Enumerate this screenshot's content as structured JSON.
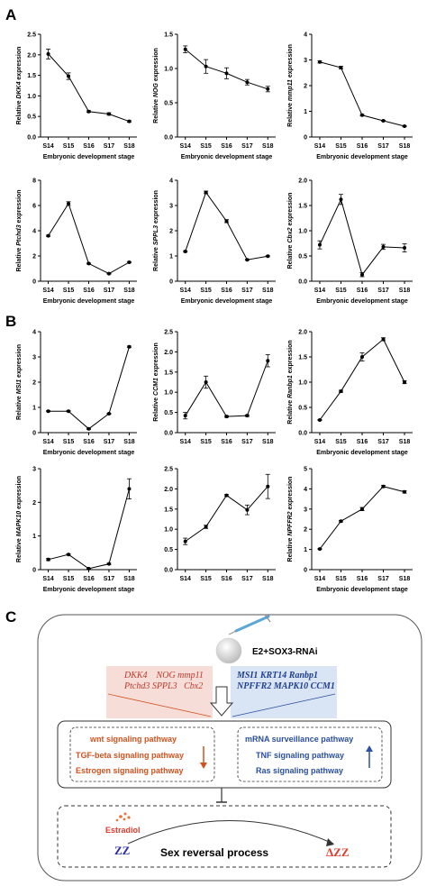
{
  "panel_letters": {
    "a": "A",
    "b": "B",
    "c": "C"
  },
  "chart_data": [
    {
      "type": "line",
      "panel": "A",
      "ylabel_prefix": "Relative ",
      "ylabel_gene": "DKK4",
      "ylabel_suffix": " expression",
      "xlabel": "Embryonic development stage",
      "categories": [
        "S14",
        "S15",
        "S16",
        "S17",
        "S18"
      ],
      "values": [
        2.02,
        1.48,
        0.62,
        0.56,
        0.38
      ],
      "errors": [
        0.12,
        0.08,
        0.02,
        0.03,
        0.02
      ],
      "ylim": [
        0,
        2.5
      ],
      "yticks": [
        "0.0",
        "0.5",
        "1.0",
        "1.5",
        "2.0",
        "2.5"
      ]
    },
    {
      "type": "line",
      "panel": "A",
      "ylabel_prefix": "Relative ",
      "ylabel_gene": "NOG",
      "ylabel_suffix": " expression",
      "xlabel": "Embryonic development stage",
      "categories": [
        "S14",
        "S15",
        "S16",
        "S17",
        "S18"
      ],
      "values": [
        1.28,
        1.03,
        0.93,
        0.8,
        0.7
      ],
      "errors": [
        0.05,
        0.1,
        0.08,
        0.04,
        0.04
      ],
      "ylim": [
        0,
        1.5
      ],
      "yticks": [
        "0.0",
        "0.5",
        "1.0",
        "1.5"
      ]
    },
    {
      "type": "line",
      "panel": "A",
      "ylabel_prefix": "Relative ",
      "ylabel_gene": "mmp11",
      "ylabel_suffix": " expression",
      "xlabel": "Embryonic development stage",
      "categories": [
        "S14",
        "S15",
        "S16",
        "S17",
        "S18"
      ],
      "values": [
        2.92,
        2.7,
        0.85,
        0.63,
        0.42
      ],
      "errors": [
        0.04,
        0.05,
        0.03,
        0.02,
        0.02
      ],
      "ylim": [
        0,
        4
      ],
      "yticks": [
        "0",
        "1",
        "2",
        "3",
        "4"
      ]
    },
    {
      "type": "line",
      "panel": "A",
      "ylabel_prefix": "Relative ",
      "ylabel_gene": "Ptchd3",
      "ylabel_suffix": " expression",
      "xlabel": "Embryonic development stage",
      "categories": [
        "S14",
        "S15",
        "S16",
        "S17",
        "S18"
      ],
      "values": [
        3.6,
        6.15,
        1.4,
        0.6,
        1.5
      ],
      "errors": [
        0.05,
        0.15,
        0.04,
        0.03,
        0.05
      ],
      "ylim": [
        0,
        8
      ],
      "yticks": [
        "0",
        "2",
        "4",
        "6",
        "8"
      ]
    },
    {
      "type": "line",
      "panel": "A",
      "ylabel_prefix": "Relative ",
      "ylabel_gene": "SPPL3",
      "ylabel_suffix": " expression",
      "xlabel": "Embryonic development stage",
      "categories": [
        "S14",
        "S15",
        "S16",
        "S17",
        "S18"
      ],
      "values": [
        1.18,
        3.52,
        2.38,
        0.85,
        0.99
      ],
      "errors": [
        0.03,
        0.05,
        0.06,
        0.02,
        0.02
      ],
      "ylim": [
        0,
        4
      ],
      "yticks": [
        "0",
        "1",
        "2",
        "3",
        "4"
      ]
    },
    {
      "type": "line",
      "panel": "A",
      "ylabel_prefix": "Relative ",
      "ylabel_gene": "Cbx2",
      "ylabel_suffix": " expression",
      "xlabel": "Embryonic development stage",
      "categories": [
        "S14",
        "S15",
        "S16",
        "S17",
        "S18"
      ],
      "values": [
        0.72,
        1.62,
        0.13,
        0.68,
        0.66
      ],
      "errors": [
        0.08,
        0.1,
        0.04,
        0.05,
        0.08
      ],
      "ylim": [
        0,
        2.0
      ],
      "yticks": [
        "0.0",
        "0.5",
        "1.0",
        "1.5",
        "2.0"
      ]
    },
    {
      "type": "line",
      "panel": "B",
      "ylabel_prefix": "Relative ",
      "ylabel_gene": "MSI1",
      "ylabel_suffix": " expression",
      "xlabel": "Embryonic development stage",
      "categories": [
        "S14",
        "S15",
        "S16",
        "S17",
        "S18"
      ],
      "values": [
        0.85,
        0.85,
        0.15,
        0.75,
        3.4
      ],
      "errors": [
        0.02,
        0.02,
        0.02,
        0.02,
        0.03
      ],
      "ylim": [
        0,
        4
      ],
      "yticks": [
        "0",
        "1",
        "2",
        "3",
        "4"
      ]
    },
    {
      "type": "line",
      "panel": "B",
      "ylabel_prefix": "Relative ",
      "ylabel_gene": "CCM1",
      "ylabel_suffix": " expression",
      "xlabel": "",
      "categories": [
        "S14",
        "S15",
        "S16",
        "S17",
        "S18"
      ],
      "values": [
        0.42,
        1.25,
        0.4,
        0.42,
        1.78
      ],
      "errors": [
        0.08,
        0.15,
        0.02,
        0.02,
        0.15
      ],
      "ylim": [
        0,
        2.5
      ],
      "yticks": [
        "0.0",
        "0.5",
        "1.0",
        "1.5",
        "2.0",
        "2.5"
      ]
    },
    {
      "type": "line",
      "panel": "B",
      "ylabel_prefix": "Relative ",
      "ylabel_gene": "Ranbp1",
      "ylabel_suffix": " expression",
      "xlabel": "Embryonic development stage",
      "categories": [
        "S14",
        "S15",
        "S16",
        "S17",
        "S18"
      ],
      "values": [
        0.25,
        0.82,
        1.5,
        1.85,
        1.0
      ],
      "errors": [
        0.01,
        0.02,
        0.08,
        0.03,
        0.03
      ],
      "ylim": [
        0,
        2.0
      ],
      "yticks": [
        "0.0",
        "0.5",
        "1.0",
        "1.5",
        "2.0"
      ]
    },
    {
      "type": "line",
      "panel": "B",
      "ylabel_prefix": "Relative ",
      "ylabel_gene": "MAPK10",
      "ylabel_suffix": " expression",
      "xlabel": "Embryonic development stage",
      "categories": [
        "S14",
        "S15",
        "S16",
        "S17",
        "S18"
      ],
      "values": [
        0.3,
        0.45,
        0.03,
        0.17,
        2.4
      ],
      "errors": [
        0.03,
        0.02,
        0.01,
        0.02,
        0.3
      ],
      "ylim": [
        0,
        3
      ],
      "yticks": [
        "0",
        "1",
        "2",
        "3"
      ]
    },
    {
      "type": "line",
      "panel": "B",
      "ylabel_prefix": "",
      "ylabel_gene": "",
      "ylabel_suffix": "",
      "xlabel": "",
      "categories": [
        "S14",
        "S15",
        "S16",
        "S17",
        "S18"
      ],
      "values": [
        0.7,
        1.06,
        1.84,
        1.48,
        2.06
      ],
      "errors": [
        0.08,
        0.04,
        0.02,
        0.12,
        0.3
      ],
      "ylim": [
        0,
        2.5
      ],
      "yticks": [
        "0.0",
        "0.5",
        "1.0",
        "1.5",
        "2.0",
        "2.5"
      ]
    },
    {
      "type": "line",
      "panel": "B",
      "ylabel_prefix": "Relative ",
      "ylabel_gene": "NPFFR2",
      "ylabel_suffix": " expression",
      "xlabel": "Embryonic development stage",
      "categories": [
        "S14",
        "S15",
        "S16",
        "S17",
        "S18"
      ],
      "values": [
        1.02,
        2.4,
        3.0,
        4.12,
        3.85
      ],
      "errors": [
        0.02,
        0.04,
        0.08,
        0.05,
        0.06
      ],
      "ylim": [
        0,
        5
      ],
      "yticks": [
        "0",
        "1",
        "2",
        "3",
        "4",
        "5"
      ]
    }
  ],
  "diagram": {
    "treatment": "E2+SOX3-RNAi",
    "down_genes_line1": "DKK4    NOG mmp11",
    "down_genes_line2": "Ptchd3 SPPL3   Cbx2",
    "up_genes_line1": "MSI1 KRT14 Ranbp1",
    "up_genes_line2": "NPFFR2 MAPK10 CCM1",
    "down_pathways": [
      "wnt signaling pathway",
      "TGF-beta signaling pathway",
      "Estrogen signaling pathway"
    ],
    "up_pathways": [
      "mRNA surveillance pathway",
      "TNF signaling pathway",
      "Ras signaling pathway"
    ],
    "estradiol": "Estradiol",
    "zz_start": "ZZ",
    "process": "Sex reversal process",
    "zz_end": "ΔZZ",
    "colors": {
      "down": "#d2521f",
      "up": "#2a4fa0",
      "estradiol": "#e03a2a",
      "zz": "#2d2da8"
    }
  }
}
